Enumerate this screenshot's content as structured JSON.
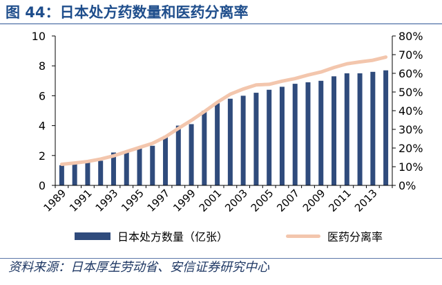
{
  "title": "图 44：日本处方药数量和医药分离率",
  "source": "资料来源：日本厚生劳动省、安信证券研究中心",
  "chart_data": {
    "type": "bar",
    "x": [
      1989,
      1990,
      1991,
      1992,
      1993,
      1994,
      1995,
      1996,
      1997,
      1998,
      1999,
      2000,
      2001,
      2002,
      2003,
      2004,
      2005,
      2006,
      2007,
      2008,
      2009,
      2010,
      2011,
      2012,
      2013,
      2014
    ],
    "x_tick_labels": [
      "1989",
      "1991",
      "1993",
      "1995",
      "1997",
      "1999",
      "2001",
      "2003",
      "2005",
      "2007",
      "2009",
      "2011",
      "2013"
    ],
    "y_left": {
      "range": [
        0,
        10
      ],
      "ticks": [
        "0",
        "2",
        "4",
        "6",
        "8",
        "10"
      ]
    },
    "y_right": {
      "range": [
        0,
        80
      ],
      "ticks": [
        "0%",
        "10%",
        "20%",
        "30%",
        "40%",
        "50%",
        "60%",
        "70%",
        "80%"
      ]
    },
    "series": [
      {
        "name": "日本处方数量（亿张）",
        "type": "bar",
        "axis": "left",
        "color": "#2f4b7c",
        "values": [
          1.35,
          1.45,
          1.55,
          1.65,
          2.2,
          2.25,
          2.55,
          2.65,
          3.3,
          4.0,
          4.1,
          5.0,
          5.5,
          5.8,
          6.0,
          6.2,
          6.4,
          6.6,
          6.8,
          6.9,
          7.0,
          7.3,
          7.5,
          7.5,
          7.6,
          7.7
        ]
      },
      {
        "name": "医药分离率",
        "type": "line",
        "axis": "right",
        "color": "#f3c6ad",
        "values": [
          11.3,
          12.0,
          12.8,
          14.1,
          15.8,
          18.1,
          20.3,
          22.5,
          26.0,
          30.5,
          34.8,
          39.5,
          44.5,
          48.8,
          51.6,
          53.8,
          54.1,
          55.8,
          57.2,
          59.1,
          60.7,
          63.1,
          65.1,
          66.1,
          67.0,
          68.7
        ]
      }
    ],
    "grid": false,
    "legend_position": "bottom"
  }
}
